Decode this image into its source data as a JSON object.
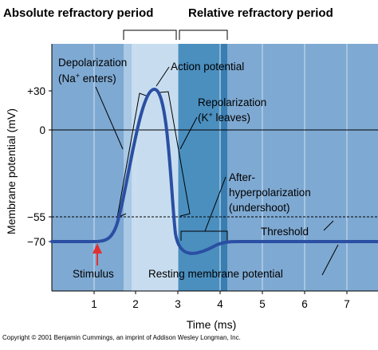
{
  "header": {
    "absolute": "Absolute refractory period",
    "relative": "Relative refractory period"
  },
  "axes": {
    "y_label": "Membrane potential (mV)",
    "x_label": "Time (ms)",
    "y_ticks": [
      "+30",
      "0",
      "−55",
      "−70"
    ],
    "x_ticks": [
      "1",
      "2",
      "3",
      "4",
      "5",
      "6",
      "7"
    ]
  },
  "annotations": {
    "depolarization_1": "Depolarization",
    "depolarization_2_pre": "(Na",
    "depolarization_2_sup": "+",
    "depolarization_2_post": " enters)",
    "action_potential": "Action potential",
    "repolarization_1": "Repolarization",
    "repolarization_2_pre": "(K",
    "repolarization_2_sup": "+",
    "repolarization_2_post": " leaves)",
    "after_1": "After-",
    "after_2": "hyperpolarization",
    "after_3": "(undershoot)",
    "threshold": "Threshold",
    "stimulus": "Stimulus",
    "resting": "Resting membrane potential"
  },
  "copyright": "Copyright © 2001 Benjamin Cummings, an imprint of Addison Wesley Longman, Inc.",
  "colors": {
    "background_band": "#7ea9d2",
    "absolute_band": "#c7ddef",
    "relative_band": "#4b8fbf",
    "curve": "#2a4fa3",
    "stimulus_arrow": "#e03030"
  }
}
